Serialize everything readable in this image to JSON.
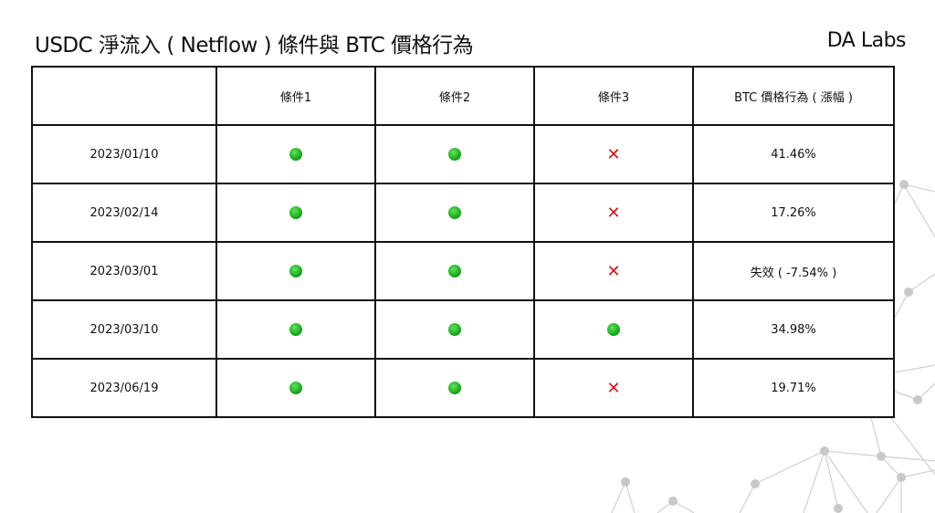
{
  "title": "USDC 淨流入 ( Netflow ) 條件與 BTC 價格行為",
  "brand": "DA Labs",
  "table": {
    "headers": [
      "",
      "條件1",
      "條件2",
      "條件3",
      "BTC 價格行為 ( 漲幅 )"
    ],
    "rows": [
      {
        "date": "2023/01/10",
        "conditions": [
          "met",
          "met",
          "not-met"
        ],
        "result": "41.46%"
      },
      {
        "date": "2023/02/14",
        "conditions": [
          "met",
          "met",
          "not-met"
        ],
        "result": "17.26%"
      },
      {
        "date": "2023/03/01",
        "conditions": [
          "met",
          "met",
          "not-met"
        ],
        "result": "失效 ( -7.54% )"
      },
      {
        "date": "2023/03/10",
        "conditions": [
          "met",
          "met",
          "met"
        ],
        "result": "34.98%"
      },
      {
        "date": "2023/06/19",
        "conditions": [
          "met",
          "met",
          "not-met"
        ],
        "result": "19.71%"
      }
    ]
  },
  "icons": {
    "met": "green-circle-icon",
    "not-met": "red-x-icon"
  },
  "colors": {
    "met": "#12a012",
    "not_met": "#d9121b"
  }
}
